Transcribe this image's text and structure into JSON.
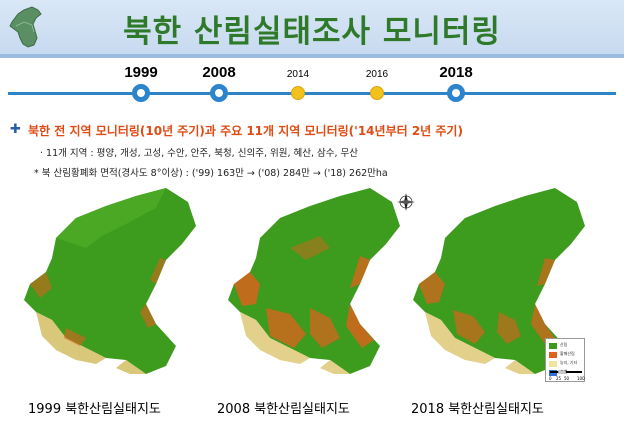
{
  "title": "북한 산림실태조사 모니터링",
  "timeline": {
    "years": [
      {
        "label": "1999",
        "type": "major"
      },
      {
        "label": "2008",
        "type": "major"
      },
      {
        "label": "2014",
        "type": "minor"
      },
      {
        "label": "2016",
        "type": "minor"
      },
      {
        "label": "2018",
        "type": "major"
      }
    ]
  },
  "info": {
    "bullet_icon": "blue-cross-bullet",
    "headline": "북한 전 지역 모니터링(10년 주기)과 주요 11개 지역 모니터링('14년부터 2년 주기)",
    "regions_line": "· 11개 지역 : 평양, 개성, 고성, 수안, 안주, 북청, 신의주, 위원, 혜산, 삼수, 무산",
    "degraded_line": "* 북 산림황폐화 면적(경사도 8°이상) : ('99) 163만 → ('08) 284만 → ('18) 262만ha"
  },
  "maps": [
    {
      "caption": "1999 북한산림실태지도"
    },
    {
      "caption": "2008 북한산림실태지도"
    },
    {
      "caption": "2018 북한산림실태지도"
    }
  ],
  "legend": {
    "items": [
      {
        "label": "산림",
        "color": "#3a9a1c"
      },
      {
        "label": "황폐산림",
        "color": "#e0611c"
      },
      {
        "label": "농지, 기타",
        "color": "#f1e3a0"
      },
      {
        "label": "수계",
        "color": "#2f70d8"
      }
    ],
    "scale": [
      "0",
      "25",
      "50",
      "100"
    ]
  },
  "colors": {
    "title_green": "#2f7a2a",
    "headline_orange": "#e04b14",
    "timeline_blue": "#2f84c8",
    "minor_yellow": "#f2c21b"
  }
}
